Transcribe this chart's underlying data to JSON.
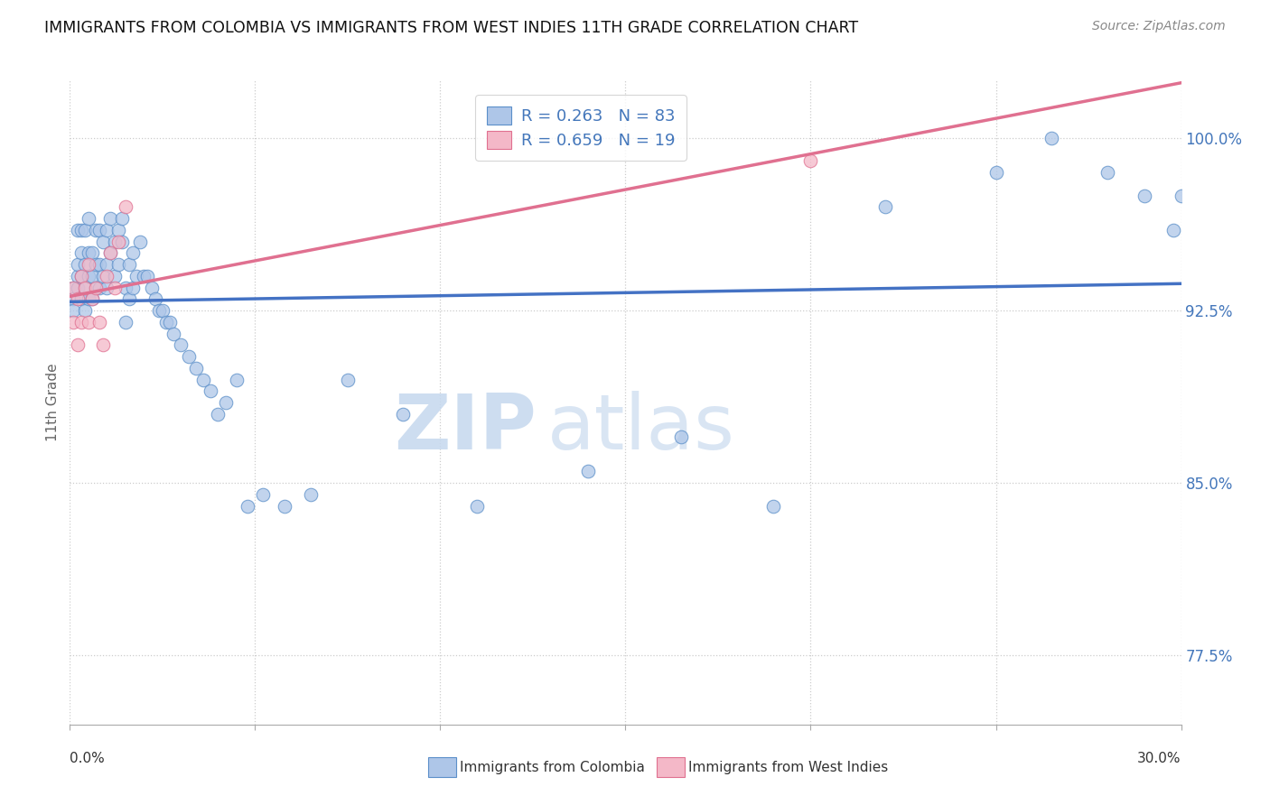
{
  "title": "IMMIGRANTS FROM COLOMBIA VS IMMIGRANTS FROM WEST INDIES 11TH GRADE CORRELATION CHART",
  "source": "Source: ZipAtlas.com",
  "ylabel": "11th Grade",
  "colombia_color": "#aec6e8",
  "colombia_edge_color": "#5b8fc9",
  "colombia_line_color": "#4472c4",
  "west_indies_color": "#f4b8c8",
  "west_indies_edge_color": "#e07090",
  "west_indies_line_color": "#e07090",
  "legend_text_color": "#4477bb",
  "R_colombia": 0.263,
  "N_colombia": 83,
  "R_west_indies": 0.659,
  "N_west_indies": 19,
  "watermark_zip": "ZIP",
  "watermark_atlas": "atlas",
  "xlim": [
    0.0,
    0.3
  ],
  "ylim": [
    0.745,
    1.025
  ],
  "ytick_vals": [
    0.775,
    0.85,
    0.925,
    1.0
  ],
  "ytick_labels": [
    "77.5%",
    "85.0%",
    "92.5%",
    "100.0%"
  ],
  "colombia_x": [
    0.001,
    0.001,
    0.001,
    0.002,
    0.002,
    0.002,
    0.002,
    0.003,
    0.003,
    0.003,
    0.003,
    0.004,
    0.004,
    0.004,
    0.004,
    0.005,
    0.005,
    0.005,
    0.005,
    0.006,
    0.006,
    0.006,
    0.007,
    0.007,
    0.007,
    0.008,
    0.008,
    0.008,
    0.009,
    0.009,
    0.01,
    0.01,
    0.01,
    0.011,
    0.011,
    0.012,
    0.012,
    0.013,
    0.013,
    0.014,
    0.014,
    0.015,
    0.015,
    0.016,
    0.016,
    0.017,
    0.017,
    0.018,
    0.019,
    0.02,
    0.021,
    0.022,
    0.023,
    0.024,
    0.025,
    0.026,
    0.027,
    0.028,
    0.03,
    0.032,
    0.034,
    0.036,
    0.038,
    0.04,
    0.042,
    0.045,
    0.048,
    0.052,
    0.058,
    0.065,
    0.075,
    0.09,
    0.11,
    0.14,
    0.165,
    0.19,
    0.22,
    0.25,
    0.265,
    0.28,
    0.29,
    0.298,
    0.3
  ],
  "colombia_y": [
    0.935,
    0.93,
    0.925,
    0.935,
    0.94,
    0.945,
    0.96,
    0.93,
    0.94,
    0.95,
    0.96,
    0.925,
    0.935,
    0.945,
    0.96,
    0.93,
    0.94,
    0.95,
    0.965,
    0.93,
    0.94,
    0.95,
    0.935,
    0.945,
    0.96,
    0.935,
    0.945,
    0.96,
    0.94,
    0.955,
    0.935,
    0.945,
    0.96,
    0.95,
    0.965,
    0.94,
    0.955,
    0.945,
    0.96,
    0.955,
    0.965,
    0.92,
    0.935,
    0.93,
    0.945,
    0.935,
    0.95,
    0.94,
    0.955,
    0.94,
    0.94,
    0.935,
    0.93,
    0.925,
    0.925,
    0.92,
    0.92,
    0.915,
    0.91,
    0.905,
    0.9,
    0.895,
    0.89,
    0.88,
    0.885,
    0.895,
    0.84,
    0.845,
    0.84,
    0.845,
    0.895,
    0.88,
    0.84,
    0.855,
    0.87,
    0.84,
    0.97,
    0.985,
    1.0,
    0.985,
    0.975,
    0.96,
    0.975
  ],
  "west_indies_x": [
    0.001,
    0.001,
    0.002,
    0.002,
    0.003,
    0.003,
    0.004,
    0.005,
    0.005,
    0.006,
    0.007,
    0.008,
    0.009,
    0.01,
    0.011,
    0.012,
    0.013,
    0.015,
    0.2
  ],
  "west_indies_y": [
    0.935,
    0.92,
    0.93,
    0.91,
    0.94,
    0.92,
    0.935,
    0.945,
    0.92,
    0.93,
    0.935,
    0.92,
    0.91,
    0.94,
    0.95,
    0.935,
    0.955,
    0.97,
    0.99
  ]
}
